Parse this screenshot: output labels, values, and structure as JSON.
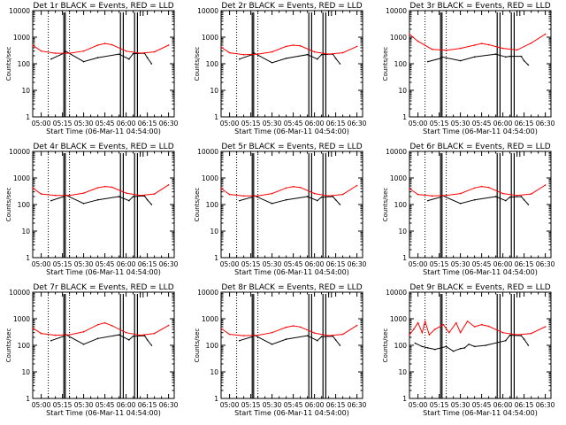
{
  "chart_data": [
    {
      "type": "line",
      "title": "Det 1r BLACK = Events, RED = LLD",
      "xlabel": "Start Time (06-Mar-11 04:54:00)",
      "ylabel": "Counts/sec",
      "ylim": [
        1,
        10000
      ],
      "yscale": "log",
      "x_ticks": [
        "05:00",
        "05:15",
        "05:30",
        "05:45",
        "06:00",
        "06:15",
        "06:30"
      ],
      "y_ticks": [
        "1",
        "10",
        "100",
        "1000",
        "10000"
      ],
      "series": [
        {
          "name": "Events",
          "color": "#000000",
          "x": [
            "05:07",
            "05:16",
            "05:17",
            "05:30",
            "05:40",
            "05:55",
            "06:02",
            "06:05",
            "06:13",
            "06:15",
            "06:18"
          ],
          "values": [
            150,
            250,
            300,
            120,
            170,
            230,
            150,
            240,
            250,
            170,
            100
          ]
        },
        {
          "name": "LLD",
          "color": "#ff0000",
          "x": [
            "04:54",
            "05:00",
            "05:10",
            "05:20",
            "05:30",
            "05:40",
            "05:45",
            "05:50",
            "06:00",
            "06:10",
            "06:20",
            "06:30"
          ],
          "values": [
            500,
            300,
            250,
            250,
            300,
            500,
            580,
            520,
            300,
            250,
            280,
            500
          ]
        }
      ]
    },
    {
      "type": "line",
      "title": "Det 2r BLACK = Events, RED = LLD",
      "xlabel": "Start Time (06-Mar-11 04:54:00)",
      "ylabel": "Counts/sec",
      "ylim": [
        1,
        10000
      ],
      "yscale": "log",
      "x_ticks": [
        "05:00",
        "05:15",
        "05:30",
        "05:45",
        "06:00",
        "06:15",
        "06:30"
      ],
      "y_ticks": [
        "1",
        "10",
        "100",
        "1000",
        "10000"
      ],
      "series": [
        {
          "name": "Events",
          "color": "#000000",
          "x": [
            "05:07",
            "05:16",
            "05:17",
            "05:30",
            "05:40",
            "05:55",
            "06:02",
            "06:05",
            "06:13",
            "06:15",
            "06:18"
          ],
          "values": [
            150,
            220,
            260,
            110,
            160,
            220,
            150,
            220,
            230,
            160,
            100
          ]
        },
        {
          "name": "LLD",
          "color": "#ff0000",
          "x": [
            "04:54",
            "05:00",
            "05:10",
            "05:20",
            "05:30",
            "05:40",
            "05:45",
            "05:50",
            "06:00",
            "06:10",
            "06:20",
            "06:30"
          ],
          "values": [
            420,
            260,
            220,
            230,
            280,
            450,
            500,
            470,
            280,
            230,
            260,
            450
          ]
        }
      ]
    },
    {
      "type": "line",
      "title": "Det 3r BLACK = Events, RED = LLD",
      "xlabel": "Start Time (06-Mar-11 04:54:00)",
      "ylabel": "Counts/sec",
      "ylim": [
        1,
        10000
      ],
      "yscale": "log",
      "x_ticks": [
        "05:00",
        "05:15",
        "05:30",
        "05:45",
        "06:00",
        "06:15",
        "06:30"
      ],
      "y_ticks": [
        "1",
        "10",
        "100",
        "1000",
        "10000"
      ],
      "series": [
        {
          "name": "Events",
          "color": "#000000",
          "x": [
            "05:07",
            "05:16",
            "05:17",
            "05:30",
            "05:40",
            "05:55",
            "06:02",
            "06:05",
            "06:13",
            "06:15",
            "06:18"
          ],
          "values": [
            120,
            160,
            180,
            130,
            180,
            230,
            180,
            190,
            190,
            130,
            90
          ]
        },
        {
          "name": "LLD",
          "color": "#ff0000",
          "x": [
            "04:54",
            "05:00",
            "05:10",
            "05:20",
            "05:30",
            "05:40",
            "05:45",
            "05:50",
            "06:00",
            "06:10",
            "06:20",
            "06:30"
          ],
          "values": [
            1300,
            700,
            350,
            320,
            380,
            500,
            580,
            520,
            380,
            330,
            600,
            1300
          ]
        }
      ]
    },
    {
      "type": "line",
      "title": "Det 4r BLACK = Events, RED = LLD",
      "xlabel": "Start Time (06-Mar-11 04:54:00)",
      "ylabel": "Counts/sec",
      "ylim": [
        1,
        10000
      ],
      "yscale": "log",
      "x_ticks": [
        "05:00",
        "05:15",
        "05:30",
        "05:45",
        "06:00",
        "06:15",
        "06:30"
      ],
      "y_ticks": [
        "1",
        "10",
        "100",
        "1000",
        "10000"
      ],
      "series": [
        {
          "name": "Events",
          "color": "#000000",
          "x": [
            "05:07",
            "05:16",
            "05:17",
            "05:30",
            "05:40",
            "05:55",
            "06:02",
            "06:05",
            "06:13",
            "06:15",
            "06:18"
          ],
          "values": [
            140,
            200,
            230,
            110,
            150,
            200,
            140,
            200,
            210,
            150,
            100
          ]
        },
        {
          "name": "LLD",
          "color": "#ff0000",
          "x": [
            "04:54",
            "05:00",
            "05:10",
            "05:20",
            "05:30",
            "05:40",
            "05:45",
            "05:50",
            "06:00",
            "06:10",
            "06:20",
            "06:30"
          ],
          "values": [
            420,
            250,
            220,
            220,
            270,
            430,
            480,
            450,
            270,
            220,
            250,
            550
          ]
        }
      ]
    },
    {
      "type": "line",
      "title": "Det 5r BLACK = Events, RED = LLD",
      "xlabel": "Start Time (06-Mar-11 04:54:00)",
      "ylabel": "Counts/sec",
      "ylim": [
        1,
        10000
      ],
      "yscale": "log",
      "x_ticks": [
        "05:00",
        "05:15",
        "05:30",
        "05:45",
        "06:00",
        "06:15",
        "06:30"
      ],
      "y_ticks": [
        "1",
        "10",
        "100",
        "1000",
        "10000"
      ],
      "series": [
        {
          "name": "Events",
          "color": "#000000",
          "x": [
            "05:07",
            "05:16",
            "05:17",
            "05:30",
            "05:40",
            "05:55",
            "06:02",
            "06:05",
            "06:13",
            "06:15",
            "06:18"
          ],
          "values": [
            140,
            190,
            220,
            110,
            150,
            200,
            140,
            190,
            200,
            150,
            100
          ]
        },
        {
          "name": "LLD",
          "color": "#ff0000",
          "x": [
            "04:54",
            "05:00",
            "05:10",
            "05:20",
            "05:30",
            "05:40",
            "05:45",
            "05:50",
            "06:00",
            "06:10",
            "06:20",
            "06:30"
          ],
          "values": [
            400,
            240,
            210,
            210,
            260,
            420,
            470,
            440,
            260,
            210,
            240,
            520
          ]
        }
      ]
    },
    {
      "type": "line",
      "title": "Det 6r BLACK = Events, RED = LLD",
      "xlabel": "Start Time (06-Mar-11 04:54:00)",
      "ylabel": "Counts/sec",
      "ylim": [
        1,
        10000
      ],
      "yscale": "log",
      "x_ticks": [
        "05:00",
        "05:15",
        "05:30",
        "05:45",
        "06:00",
        "06:15",
        "06:30"
      ],
      "y_ticks": [
        "1",
        "10",
        "100",
        "1000",
        "10000"
      ],
      "series": [
        {
          "name": "Events",
          "color": "#000000",
          "x": [
            "05:07",
            "05:16",
            "05:17",
            "05:30",
            "05:40",
            "05:55",
            "06:02",
            "06:05",
            "06:13",
            "06:15",
            "06:18"
          ],
          "values": [
            140,
            190,
            220,
            110,
            150,
            200,
            140,
            190,
            200,
            150,
            100
          ]
        },
        {
          "name": "LLD",
          "color": "#ff0000",
          "x": [
            "04:54",
            "05:00",
            "05:10",
            "05:20",
            "05:30",
            "05:40",
            "05:45",
            "05:50",
            "06:00",
            "06:10",
            "06:20",
            "06:30"
          ],
          "values": [
            400,
            240,
            210,
            220,
            260,
            420,
            480,
            440,
            260,
            220,
            250,
            540
          ]
        }
      ]
    },
    {
      "type": "line",
      "title": "Det 7r BLACK = Events, RED = LLD",
      "xlabel": "Start Time (06-Mar-11 04:54:00)",
      "ylabel": "Counts/sec",
      "ylim": [
        1,
        10000
      ],
      "yscale": "log",
      "x_ticks": [
        "05:00",
        "05:15",
        "05:30",
        "05:45",
        "06:00",
        "06:15",
        "06:30"
      ],
      "y_ticks": [
        "1",
        "10",
        "100",
        "1000",
        "10000"
      ],
      "series": [
        {
          "name": "Events",
          "color": "#000000",
          "x": [
            "05:07",
            "05:16",
            "05:17",
            "05:30",
            "05:40",
            "05:55",
            "06:02",
            "06:05",
            "06:13",
            "06:15",
            "06:18"
          ],
          "values": [
            150,
            220,
            260,
            110,
            180,
            250,
            160,
            220,
            230,
            160,
            100
          ]
        },
        {
          "name": "LLD",
          "color": "#ff0000",
          "x": [
            "04:54",
            "05:00",
            "05:10",
            "05:20",
            "05:30",
            "05:40",
            "05:45",
            "05:50",
            "06:00",
            "06:10",
            "06:20",
            "06:30"
          ],
          "values": [
            450,
            280,
            240,
            250,
            320,
            600,
            700,
            550,
            300,
            240,
            280,
            560
          ]
        }
      ]
    },
    {
      "type": "line",
      "title": "Det 8r BLACK = Events, RED = LLD",
      "xlabel": "Start Time (06-Mar-11 04:54:00)",
      "ylabel": "Counts/sec",
      "ylim": [
        1,
        10000
      ],
      "yscale": "log",
      "x_ticks": [
        "05:00",
        "05:15",
        "05:30",
        "05:45",
        "06:00",
        "06:15",
        "06:30"
      ],
      "y_ticks": [
        "1",
        "10",
        "100",
        "1000",
        "10000"
      ],
      "series": [
        {
          "name": "Events",
          "color": "#000000",
          "x": [
            "05:07",
            "05:16",
            "05:17",
            "05:30",
            "05:40",
            "05:55",
            "06:02",
            "06:05",
            "06:13",
            "06:15",
            "06:18"
          ],
          "values": [
            150,
            210,
            250,
            110,
            170,
            230,
            150,
            210,
            220,
            160,
            100
          ]
        },
        {
          "name": "LLD",
          "color": "#ff0000",
          "x": [
            "04:54",
            "05:00",
            "05:10",
            "05:20",
            "05:30",
            "05:40",
            "05:45",
            "05:50",
            "06:00",
            "06:10",
            "06:20",
            "06:30"
          ],
          "values": [
            430,
            260,
            230,
            240,
            300,
            480,
            540,
            490,
            290,
            230,
            260,
            560
          ]
        }
      ]
    },
    {
      "type": "line",
      "title": "Det 9r BLACK = Events, RED = LLD",
      "xlabel": "Start Time (06-Mar-11 04:54:00)",
      "ylabel": "Counts/sec",
      "ylim": [
        1,
        10000
      ],
      "yscale": "log",
      "x_ticks": [
        "05:00",
        "05:15",
        "05:30",
        "05:45",
        "06:00",
        "06:15",
        "06:30"
      ],
      "y_ticks": [
        "1",
        "10",
        "100",
        "1000",
        "10000"
      ],
      "series": [
        {
          "name": "Events",
          "color": "#000000",
          "x": [
            "04:58",
            "05:03",
            "05:07",
            "05:12",
            "05:20",
            "05:25",
            "05:30",
            "05:33",
            "05:36",
            "05:40",
            "05:48",
            "06:02",
            "06:05",
            "06:13",
            "06:15",
            "06:18"
          ],
          "values": [
            120,
            90,
            80,
            70,
            90,
            60,
            75,
            80,
            110,
            90,
            100,
            150,
            240,
            230,
            170,
            100
          ]
        },
        {
          "name": "LLD",
          "color": "#ff0000",
          "x": [
            "04:54",
            "04:57",
            "05:00",
            "05:03",
            "05:05",
            "05:08",
            "05:12",
            "05:18",
            "05:22",
            "05:27",
            "05:30",
            "05:35",
            "05:40",
            "05:45",
            "05:50",
            "06:00",
            "06:10",
            "06:20",
            "06:30"
          ],
          "values": [
            250,
            400,
            700,
            300,
            800,
            250,
            400,
            600,
            300,
            700,
            300,
            800,
            500,
            600,
            520,
            300,
            250,
            280,
            500
          ]
        }
      ]
    }
  ]
}
